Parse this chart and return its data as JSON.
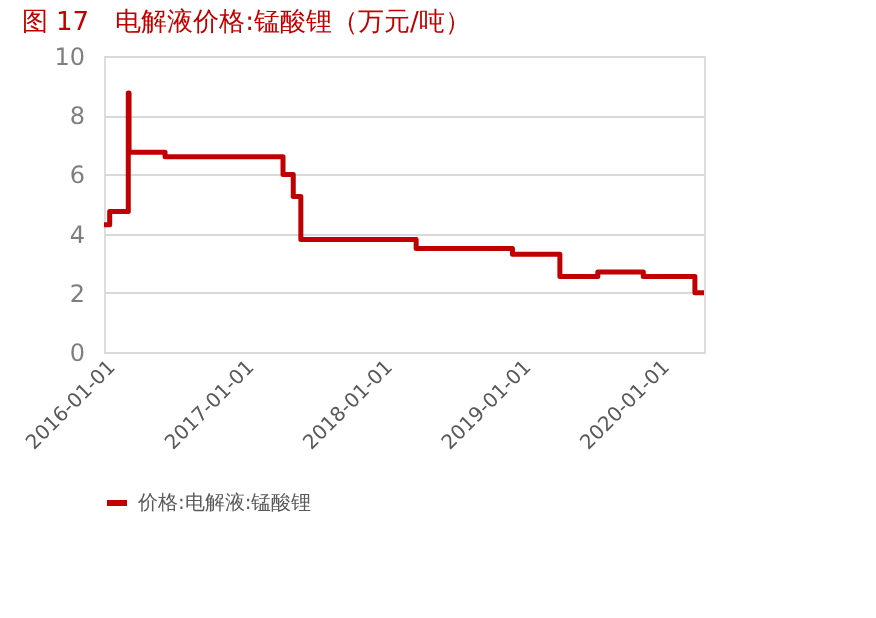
{
  "chart_data": {
    "type": "step",
    "title": "图 17　电解液价格:锰酸锂（万元/吨）",
    "x": [
      "2016-01-01",
      "2016-01-16",
      "2016-03-05",
      "2016-03-07",
      "2016-06-10",
      "2017-04-17",
      "2017-05-14",
      "2017-06-03",
      "2018-04-03",
      "2018-12-13",
      "2019-04-17",
      "2019-07-26",
      "2019-11-23",
      "2020-04-07",
      "2020-05-01"
    ],
    "series": [
      {
        "name": "价格:电解液:锰酸锂",
        "color": "#c00000",
        "values": [
          4.3,
          4.75,
          8.75,
          6.75,
          6.6,
          6.0,
          5.25,
          3.8,
          3.5,
          3.3,
          2.55,
          2.7,
          2.55,
          2.0,
          2.0
        ]
      }
    ],
    "xlim": [
      "2016-01-01",
      "2020-05-01"
    ],
    "xticks": [
      "2016-01-01",
      "2017-01-01",
      "2018-01-01",
      "2019-01-01",
      "2020-01-01"
    ],
    "ylim": [
      0,
      10
    ],
    "yticks": [
      0,
      2,
      4,
      6,
      8,
      10
    ],
    "grid": "y",
    "legend": "bottom"
  }
}
